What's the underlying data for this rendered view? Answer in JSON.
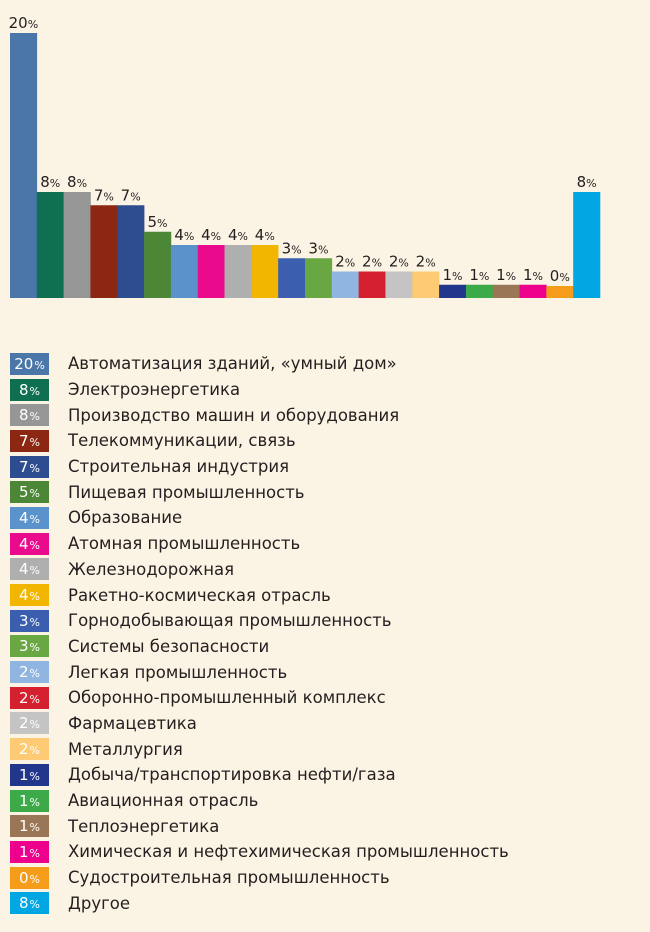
{
  "chart_data": {
    "type": "bar",
    "ylim": [
      0,
      20
    ],
    "value_suffix": "%",
    "categories": [
      "Автоматизация зданий, «умный дом»",
      "Электроэнергетика",
      "Производство машин и оборудования",
      "Телекоммуникации, связь",
      "Строительная индустрия",
      "Пищевая промышленность",
      "Образование",
      "Атомная промышленность",
      "Железнодорожная",
      "Ракетно-космическая отрасль",
      "Горнодобывающая промышленность",
      "Системы безопасности",
      "Легкая промышленность",
      "Оборонно-промышленный комплекс",
      "Фармацевтика",
      "Металлургия",
      "Добыча/транспортировка нефти/газа",
      "Авиационная отрасль",
      "Теплоэнергетика",
      "Химическая и нефтехимическая промышленность",
      "Судостроительная промышленность",
      "Другое"
    ],
    "values": [
      20,
      8,
      8,
      7,
      7,
      5,
      4,
      4,
      4,
      4,
      3,
      3,
      2,
      2,
      2,
      2,
      1,
      1,
      1,
      1,
      0,
      8
    ],
    "colors": [
      "#4a76a8",
      "#0e7050",
      "#969696",
      "#8b2713",
      "#2e4d91",
      "#4c8637",
      "#5a92cb",
      "#ea0b8d",
      "#afafaf",
      "#f2b600",
      "#3b5fae",
      "#69a743",
      "#8fb5e0",
      "#d5202f",
      "#c4c4c4",
      "#fecb74",
      "#22368b",
      "#3caa48",
      "#9a7656",
      "#ec008c",
      "#f59c1a",
      "#00a7e3"
    ]
  }
}
